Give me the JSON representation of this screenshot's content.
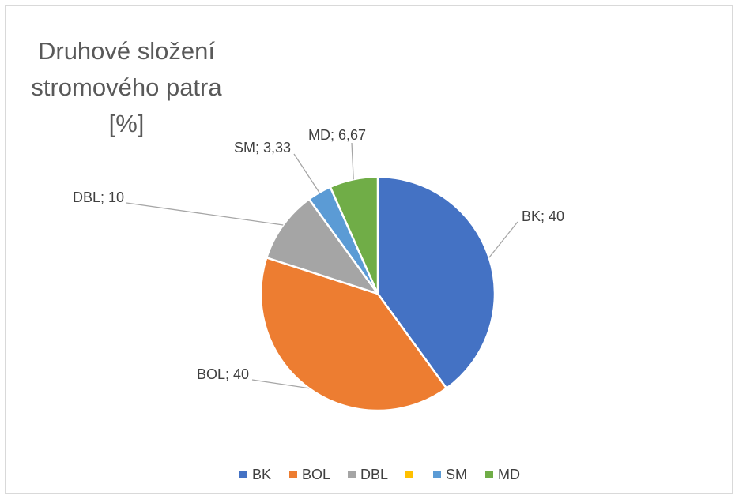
{
  "chart_data": {
    "type": "pie",
    "title": "Druhové složení stromového patra [%]",
    "categories": [
      "BK",
      "BOL",
      "DBL",
      null,
      "SM",
      "MD"
    ],
    "values": [
      40,
      40,
      10,
      0,
      3.33,
      6.67
    ],
    "value_labels": [
      "BK; 40",
      "BOL; 40",
      "DBL; 10",
      null,
      "SM; 3,33",
      "MD; 6,67"
    ],
    "colors": [
      "#4472c4",
      "#ed7d31",
      "#a5a5a5",
      "#ffc000",
      "#5b9bd5",
      "#70ad47"
    ],
    "legend": "bottom"
  }
}
